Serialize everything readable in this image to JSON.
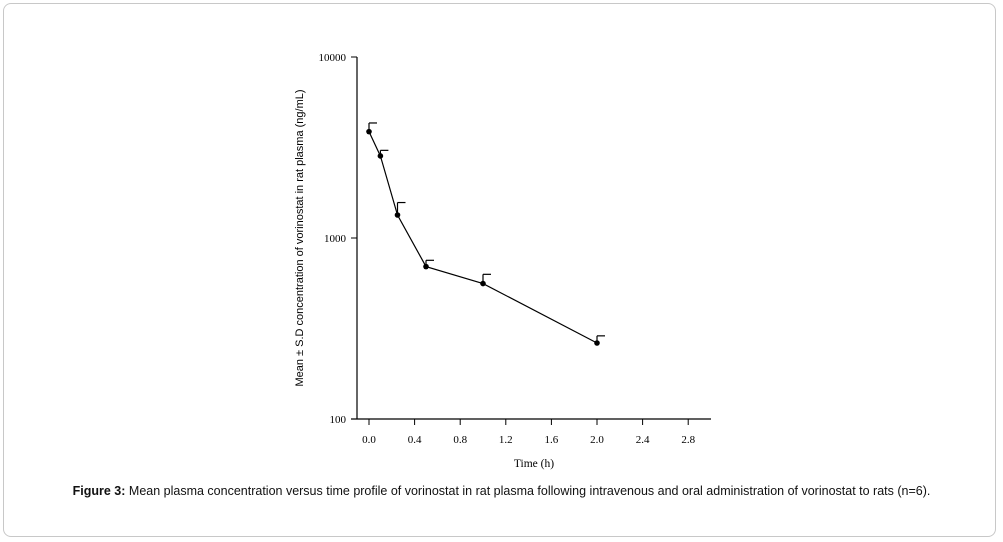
{
  "caption": {
    "label": "Figure 3:",
    "text": " Mean plasma concentration versus time profile of vorinostat in rat plasma following intravenous and oral administration of vorinostat to rats (n=6)."
  },
  "chart_data": {
    "type": "line",
    "title": "",
    "xlabel": "Time (h)",
    "ylabel": "Mean ± S.D concentration of vorinostat in rat plasma (ng/mL)",
    "xlim": [
      -0.1,
      3.0
    ],
    "ylim": [
      100,
      10000
    ],
    "yscale": "log",
    "xticks": [
      0.0,
      0.4,
      0.8,
      1.2,
      1.6,
      2.0,
      2.4,
      2.8
    ],
    "xtick_labels": [
      "0.0",
      "0.4",
      "0.8",
      "1.2",
      "1.6",
      "2.0",
      "2.4",
      "2.8"
    ],
    "yticks": [
      100,
      1000,
      10000
    ],
    "ytick_labels": [
      "100",
      "1000",
      "10000"
    ],
    "grid": false,
    "series": [
      {
        "name": "Vorinostat",
        "x": [
          0.0,
          0.1,
          0.25,
          0.5,
          1.0,
          2.0
        ],
        "values": [
          3870,
          2840,
          1340,
          695,
          560,
          263
        ],
        "sd": [
          450,
          210,
          230,
          58,
          70,
          25
        ],
        "color": "#000000"
      }
    ]
  }
}
